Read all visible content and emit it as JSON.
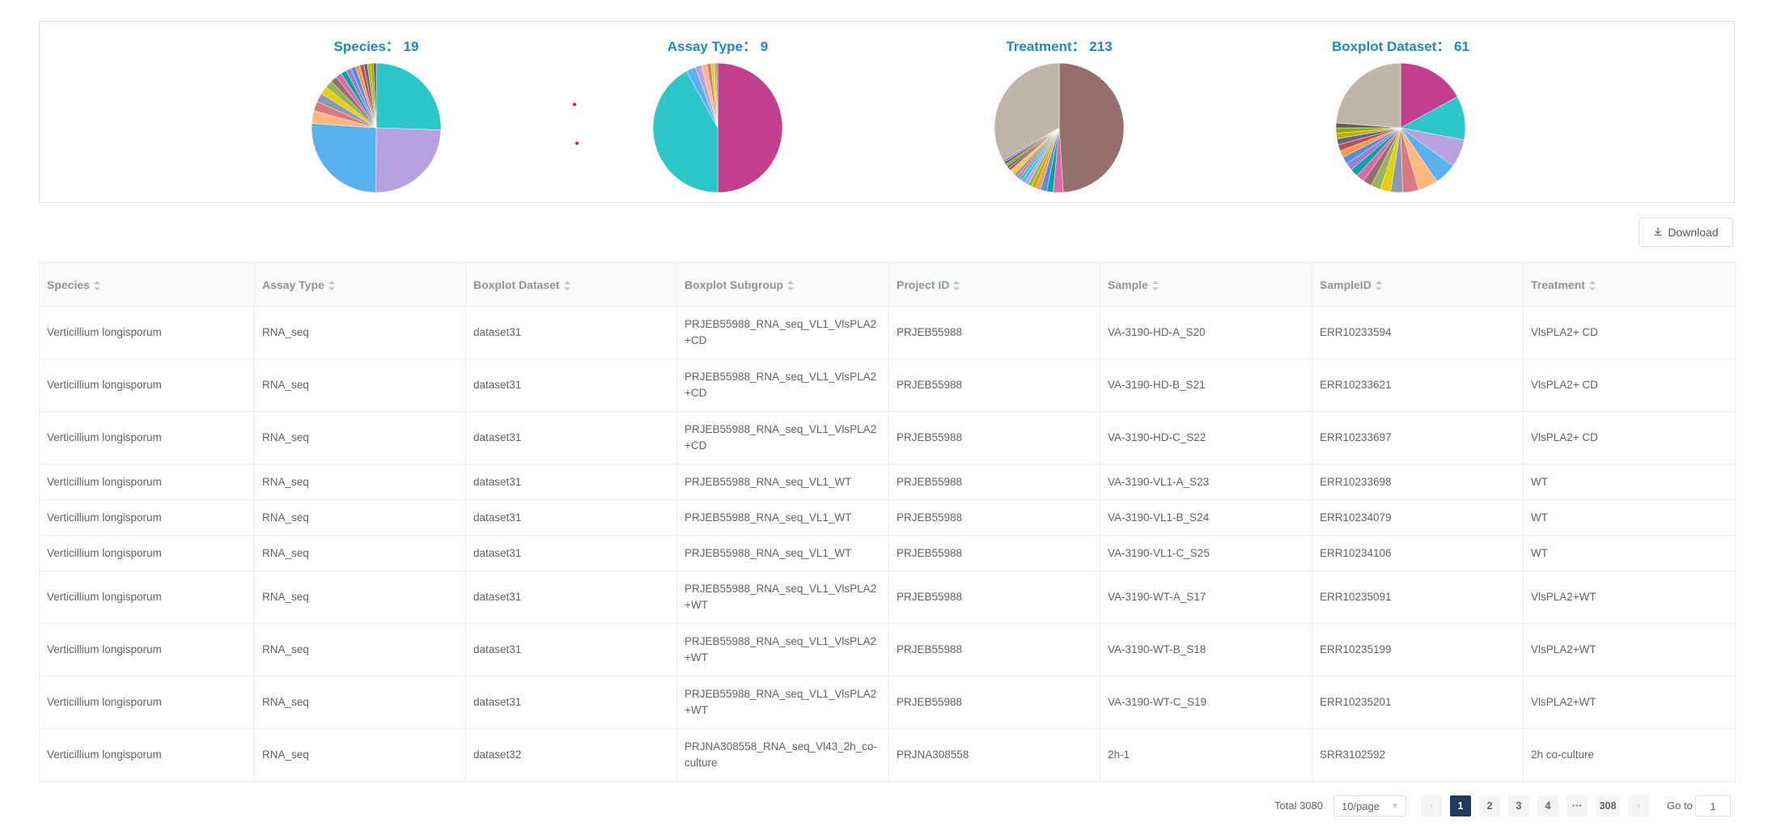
{
  "charts": [
    {
      "title": "Species： 19",
      "colors": [
        "#2ec7c9",
        "#b6a2de",
        "#5ab1ef",
        "#ffb980",
        "#d87a80",
        "#8d98b3",
        "#e5cf0d",
        "#97b552",
        "#95706d",
        "#dc69aa",
        "#07a2a4",
        "#9a7fd1",
        "#588dd5",
        "#f5994e",
        "#c05050",
        "#59678c",
        "#c9ab00",
        "#7eb00a",
        "#6f5553"
      ],
      "values": [
        25.5,
        24.5,
        26,
        3.2,
        2.4,
        2.2,
        2,
        1.9,
        1.6,
        1.5,
        1.4,
        1.3,
        1.2,
        1.1,
        1.0,
        0.9,
        0.8,
        0.7,
        0.7
      ]
    },
    {
      "title": "Assay Type： 9",
      "colors": [
        "#c23f8d",
        "#2ec7c9",
        "#5ab1ef",
        "#b6a2de",
        "#ffb980",
        "#d87a80",
        "#e5cf0d",
        "#97b552",
        "#95706d"
      ],
      "values": [
        50,
        42,
        2.3,
        1.6,
        1.4,
        1.0,
        0.8,
        0.5,
        0.4
      ]
    },
    {
      "title": "Treatment： 213",
      "colors": [
        "#95706d",
        "#dc69aa",
        "#07a2a4",
        "#588dd5",
        "#f5994e",
        "#c9ab00",
        "#97b552",
        "#b6a2de",
        "#5ab1ef",
        "#2ec7c9",
        "#d87a80",
        "#8d98b3",
        "#e5cf0d",
        "#ffb980",
        "#c05050",
        "#59678c",
        "#7eb00a",
        "#6f5553",
        "#9a7fd1",
        "#bfb5a8"
      ],
      "values": [
        49,
        2.5,
        1.6,
        1.6,
        1.2,
        1.1,
        1.0,
        0.9,
        0.9,
        0.8,
        0.8,
        0.8,
        0.7,
        0.7,
        0.7,
        0.6,
        0.6,
        0.6,
        0.6,
        33.3
      ]
    },
    {
      "title": "Boxplot Dataset： 61",
      "colors": [
        "#c23f8d",
        "#2ec7c9",
        "#b6a2de",
        "#5ab1ef",
        "#ffb980",
        "#d87a80",
        "#8d98b3",
        "#e5cf0d",
        "#97b552",
        "#95706d",
        "#dc69aa",
        "#07a2a4",
        "#9a7fd1",
        "#588dd5",
        "#f5994e",
        "#c05050",
        "#59678c",
        "#c9ab00",
        "#7eb00a",
        "#6f5553",
        "#bfb5a8"
      ],
      "values": [
        17,
        11,
        7,
        5.5,
        5,
        4,
        3,
        2.6,
        2.4,
        2.2,
        2.1,
        2.0,
        1.9,
        1.8,
        1.7,
        1.6,
        1.5,
        1.4,
        1.3,
        1.2,
        23.8
      ]
    }
  ],
  "download_label": "Download",
  "table": {
    "headers": [
      "Species",
      "Assay Type",
      "Boxplot Dataset",
      "Boxplot Subgroup",
      "Project ID",
      "Sample",
      "SampleID",
      "Treatment"
    ],
    "rows": [
      [
        "Verticillium longisporum",
        "RNA_seq",
        "dataset31",
        "PRJEB55988_RNA_seq_VL1_VlsPLA2+CD",
        "PRJEB55988",
        "VA-3190-HD-A_S20",
        "ERR10233594",
        "VlsPLA2+ CD"
      ],
      [
        "Verticillium longisporum",
        "RNA_seq",
        "dataset31",
        "PRJEB55988_RNA_seq_VL1_VlsPLA2+CD",
        "PRJEB55988",
        "VA-3190-HD-B_S21",
        "ERR10233621",
        "VlsPLA2+ CD"
      ],
      [
        "Verticillium longisporum",
        "RNA_seq",
        "dataset31",
        "PRJEB55988_RNA_seq_VL1_VlsPLA2+CD",
        "PRJEB55988",
        "VA-3190-HD-C_S22",
        "ERR10233697",
        "VlsPLA2+ CD"
      ],
      [
        "Verticillium longisporum",
        "RNA_seq",
        "dataset31",
        "PRJEB55988_RNA_seq_VL1_WT",
        "PRJEB55988",
        "VA-3190-VL1-A_S23",
        "ERR10233698",
        "WT"
      ],
      [
        "Verticillium longisporum",
        "RNA_seq",
        "dataset31",
        "PRJEB55988_RNA_seq_VL1_WT",
        "PRJEB55988",
        "VA-3190-VL1-B_S24",
        "ERR10234079",
        "WT"
      ],
      [
        "Verticillium longisporum",
        "RNA_seq",
        "dataset31",
        "PRJEB55988_RNA_seq_VL1_WT",
        "PRJEB55988",
        "VA-3190-VL1-C_S25",
        "ERR10234106",
        "WT"
      ],
      [
        "Verticillium longisporum",
        "RNA_seq",
        "dataset31",
        "PRJEB55988_RNA_seq_VL1_VlsPLA2+WT",
        "PRJEB55988",
        "VA-3190-WT-A_S17",
        "ERR10235091",
        "VlsPLA2+WT"
      ],
      [
        "Verticillium longisporum",
        "RNA_seq",
        "dataset31",
        "PRJEB55988_RNA_seq_VL1_VlsPLA2+WT",
        "PRJEB55988",
        "VA-3190-WT-B_S18",
        "ERR10235199",
        "VlsPLA2+WT"
      ],
      [
        "Verticillium longisporum",
        "RNA_seq",
        "dataset31",
        "PRJEB55988_RNA_seq_VL1_VlsPLA2+WT",
        "PRJEB55988",
        "VA-3190-WT-C_S19",
        "ERR10235201",
        "VlsPLA2+WT"
      ],
      [
        "Verticillium longisporum",
        "RNA_seq",
        "dataset32",
        "PRJNA308558_RNA_seq_Vl43_2h_co-culture",
        "PRJNA308558",
        "2h-1",
        "SRR3102592",
        "2h co-culture"
      ]
    ]
  },
  "pagination": {
    "total": "Total 3080",
    "page_size": "10/page",
    "pages": [
      "1",
      "2",
      "3",
      "4",
      "···",
      "308"
    ],
    "current": "1",
    "goto_label": "Go to",
    "goto_value": "1",
    "prev_icon": "chevron-left-icon",
    "next_icon": "chevron-right-icon"
  }
}
